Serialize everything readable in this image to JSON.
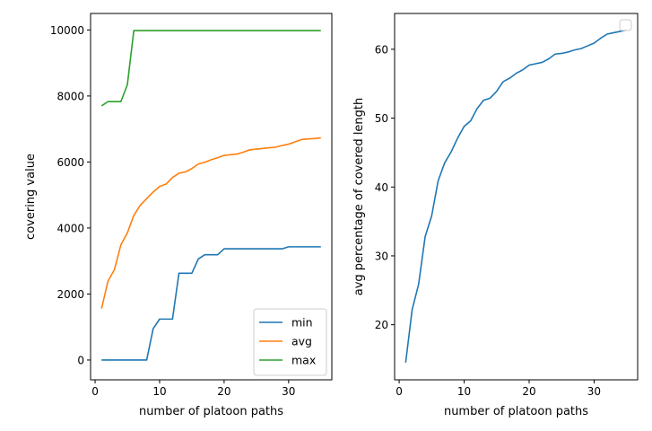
{
  "chart_data": [
    {
      "type": "line",
      "title": "",
      "xlabel": "number of platoon paths",
      "ylabel": "covering value",
      "xlim": [
        -0.7,
        36.7
      ],
      "ylim": [
        -600,
        10500
      ],
      "xticks": [
        0,
        10,
        20,
        30
      ],
      "yticks": [
        0,
        2000,
        4000,
        6000,
        8000,
        10000
      ],
      "grid": false,
      "legend": "lower-right",
      "x": [
        1,
        2,
        3,
        4,
        5,
        6,
        7,
        8,
        9,
        10,
        11,
        12,
        13,
        14,
        15,
        16,
        17,
        18,
        19,
        20,
        21,
        22,
        23,
        24,
        25,
        26,
        27,
        28,
        29,
        30,
        31,
        32,
        33,
        34,
        35
      ],
      "series": [
        {
          "name": "min",
          "color": "#1f77b4",
          "values": [
            0,
            0,
            0,
            0,
            0,
            0,
            0,
            0,
            950,
            1240,
            1240,
            1240,
            2630,
            2630,
            2630,
            3060,
            3190,
            3190,
            3190,
            3370,
            3370,
            3370,
            3370,
            3370,
            3370,
            3370,
            3370,
            3370,
            3370,
            3430,
            3430,
            3430,
            3430,
            3430,
            3430
          ]
        },
        {
          "name": "avg",
          "color": "#ff7f0e",
          "values": [
            1560,
            2390,
            2740,
            3490,
            3850,
            4380,
            4690,
            4890,
            5090,
            5260,
            5330,
            5530,
            5660,
            5700,
            5800,
            5940,
            5990,
            6070,
            6130,
            6200,
            6220,
            6240,
            6300,
            6370,
            6390,
            6410,
            6430,
            6450,
            6500,
            6540,
            6610,
            6680,
            6700,
            6710,
            6730
          ]
        },
        {
          "name": "max",
          "color": "#2ca02c",
          "values": [
            7700,
            7830,
            7830,
            7830,
            8340,
            9980,
            9980,
            9980,
            9980,
            9980,
            9980,
            9980,
            9980,
            9980,
            9980,
            9980,
            9980,
            9980,
            9980,
            9980,
            9980,
            9980,
            9980,
            9980,
            9980,
            9980,
            9980,
            9980,
            9980,
            9980,
            9980,
            9980,
            9980,
            9980,
            9980
          ]
        }
      ]
    },
    {
      "type": "line",
      "title": "",
      "xlabel": "number of platoon paths",
      "ylabel": "avg percentage of covered length",
      "xlim": [
        -0.7,
        36.7
      ],
      "ylim": [
        12.0,
        65.2
      ],
      "xticks": [
        0,
        10,
        20,
        30
      ],
      "yticks": [
        20,
        30,
        40,
        50,
        60
      ],
      "grid": false,
      "legend": "top-right",
      "x": [
        1,
        2,
        3,
        4,
        5,
        6,
        7,
        8,
        9,
        10,
        11,
        12,
        13,
        14,
        15,
        16,
        17,
        18,
        19,
        20,
        21,
        22,
        23,
        24,
        25,
        26,
        27,
        28,
        29,
        30,
        31,
        32,
        33,
        34,
        35
      ],
      "series": [
        {
          "color": "#1f77b4",
          "values": [
            14.5,
            22.2,
            25.9,
            32.8,
            35.8,
            40.9,
            43.5,
            45.1,
            47.1,
            48.8,
            49.6,
            51.4,
            52.6,
            52.9,
            53.9,
            55.3,
            55.8,
            56.5,
            57.0,
            57.7,
            57.9,
            58.1,
            58.6,
            59.3,
            59.4,
            59.6,
            59.9,
            60.1,
            60.5,
            60.9,
            61.6,
            62.2,
            62.4,
            62.6,
            62.8
          ]
        }
      ]
    }
  ]
}
